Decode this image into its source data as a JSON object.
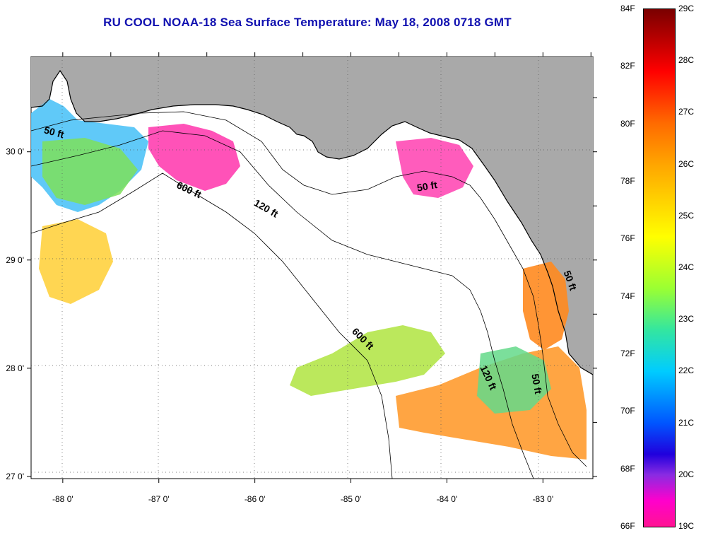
{
  "title": "RU COOL  NOAA-18  Sea Surface Temperature:  May 18, 2008 0718 GMT",
  "map": {
    "lon_ticks": [
      "-88 0'",
      "-87 0'",
      "-86 0'",
      "-85 0'",
      "-84 0'",
      "-83 0'"
    ],
    "lat_ticks": [
      "30 0'",
      "29 0'",
      "28 0'",
      "27 0'"
    ],
    "lon_range": [
      -88.33,
      -82.48
    ],
    "lat_range": [
      26.98,
      30.88
    ],
    "contour_labels": [
      {
        "text": "50 ft",
        "lon": -88.1,
        "lat": 30.15,
        "rot": 15
      },
      {
        "text": "600 ft",
        "lon": -86.7,
        "lat": 29.62,
        "rot": 25
      },
      {
        "text": "120 ft",
        "lon": -85.9,
        "lat": 29.45,
        "rot": 30
      },
      {
        "text": "50 ft",
        "lon": -84.2,
        "lat": 29.65,
        "rot": -10
      },
      {
        "text": "600 ft",
        "lon": -84.9,
        "lat": 28.25,
        "rot": 45
      },
      {
        "text": "120 ft",
        "lon": -83.6,
        "lat": 27.9,
        "rot": 65
      },
      {
        "text": "50 ft",
        "lon": -83.1,
        "lat": 27.85,
        "rot": 80
      },
      {
        "text": "50 ft",
        "lon": -82.75,
        "lat": 28.8,
        "rot": 70
      }
    ],
    "colors": {
      "land": "#a9a9a9",
      "ocean": "#ffffff"
    }
  },
  "colorbar": {
    "fahrenheit": [
      "84F",
      "82F",
      "80F",
      "78F",
      "76F",
      "74F",
      "72F",
      "70F",
      "68F",
      "66F"
    ],
    "celsius": [
      "29C",
      "28C",
      "27C",
      "26C",
      "25C",
      "24C",
      "23C",
      "22C",
      "21C",
      "20C",
      "19C"
    ],
    "min_c": 19,
    "max_c": 29
  }
}
